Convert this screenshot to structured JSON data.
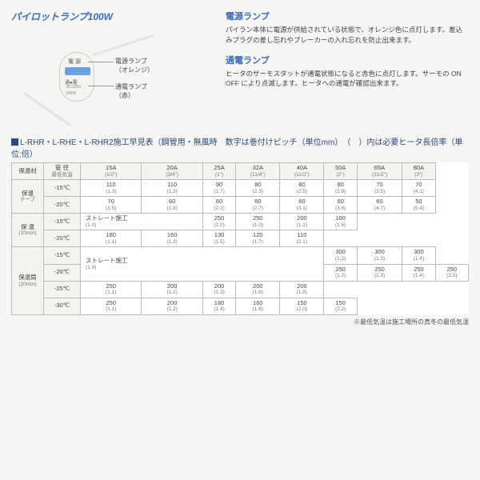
{
  "product_title": "パイロットランプ100W",
  "callouts": {
    "c1a": "電源ランプ",
    "c1b": "（オレンジ）",
    "c2a": "通電ランプ",
    "c2b": "（赤）"
  },
  "device": {
    "t1": "電 源",
    "t3": "通●電",
    "t4": "AC100V",
    "t5": "100W",
    "brand": "SANSEI"
  },
  "sec1h": "電源ランプ",
  "sec1p": "パイラン本体に電源が供給されている状態で、オレンジ色に点灯します。差込みプラグの差し忘れやブレーカーの入れ忘れを防止出来ます。",
  "sec2h": "通電ランプ",
  "sec2p": "ヒータのサーモスタットが通電状態になると赤色に点灯します。サーモの ON OFF により点滅します。ヒータへの通電が確認出来ます。",
  "table_title": "L-RHR・L-RHE・L-RHR2施工早見表（鋼管用・無風時　数字は巻付けピッチ（単位mm）　（　）内は必要ヒータ長倍率（単位:倍）",
  "head_rows": [
    [
      "保温材",
      "管 径\n最低気温",
      "15A",
      "20A",
      "25A",
      "32A",
      "40A",
      "50A",
      "65A",
      "80A"
    ],
    [
      "",
      "",
      "(1/2\")",
      "(3/4\")",
      "(1\")",
      "(11/4\")",
      "(11/2\")",
      "(2\")",
      "(21/2\")",
      "(3\")"
    ]
  ],
  "groups": [
    {
      "name": "保温\nテープ",
      "rows": [
        [
          "-15℃",
          "110\n(1.3)",
          "110\n(1.3)",
          "90\n(1.7)",
          "80\n(2.3)",
          "80\n(2.5)",
          "80\n(2.8)",
          "70\n(3.5)",
          "70\n(4.1)"
        ],
        [
          "-20℃",
          "70\n(1.5)",
          "60\n(1.8)",
          "60\n(2.2)",
          "60\n(2.7)",
          "60\n(3.1)",
          "60\n(3.6)",
          "60\n(4.7)",
          "50\n(5.4)"
        ]
      ]
    },
    {
      "name": "保 温\n(10mm)",
      "rows": [
        [
          "-15℃",
          {
            "t": "ストレート施工\n(1.0)",
            "span": 2
          },
          "",
          "250\n(1.0)",
          "250\n(1.0)",
          "200\n(1.1)",
          "160\n(1.6)",
          "",
          ""
        ],
        [
          "-20℃",
          "",
          "180\n(1.1)",
          "160\n(1.3)",
          "130\n(1.5)",
          "120\n(1.7)",
          "110\n(2.1)",
          "",
          ""
        ]
      ]
    },
    {
      "name": "保温筒\n(20mm)",
      "rows": [
        [
          "-15℃",
          {
            "t": "ストレート施工\n(1.0)",
            "span": 5,
            "rspan": 2
          },
          "",
          "",
          "",
          "",
          "300\n(1.2)",
          "300\n(1.3)",
          "300\n(1.4)"
        ],
        [
          "-20℃",
          "",
          "",
          "",
          "250\n(1.2)",
          "250\n(1.3)",
          "250\n(1.4)",
          "250\n(1.5)"
        ],
        [
          "-25℃",
          "",
          "",
          "",
          "250\n(1.1)",
          "200\n(1.2)",
          "200\n(1.3)",
          "200\n(1.6)",
          "200\n(1.8)"
        ],
        [
          "-30℃",
          "",
          "",
          "250\n(1.1)",
          "200\n(1.2)",
          "180\n(1.4)",
          "160\n(1.6)",
          "150\n(2.0)",
          "150\n(2.2)"
        ]
      ]
    }
  ],
  "footnote": "※最低気温は施工場所の真冬の最低気温"
}
